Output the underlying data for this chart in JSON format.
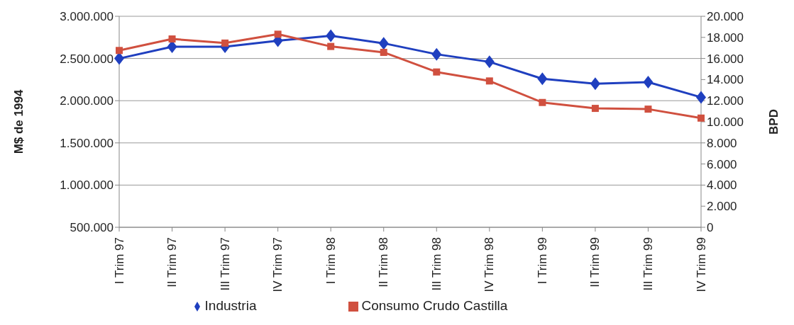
{
  "chart_data": {
    "type": "line",
    "ylabel": "M$ de 1994",
    "y2label": "BPD",
    "categories": [
      "I Trim 97",
      "II Trim 97",
      "III Trim 97",
      "IV Trim 97",
      "I Trim 98",
      "II Trim 98",
      "III Trim 98",
      "IV Trim 98",
      "I Trim 99",
      "II Trim 99",
      "III Trim 99",
      "IV Trim 99"
    ],
    "series": [
      {
        "name": "Industria",
        "color": "#1f3fbf",
        "marker": "diamond",
        "values": [
          2500000,
          2640000,
          2640000,
          2710000,
          2770000,
          2680000,
          2550000,
          2460000,
          2260000,
          2200000,
          2220000,
          2040000
        ]
      },
      {
        "name": "Consumo Crudo Castilla",
        "color": "#d0503f",
        "marker": "square",
        "axis": "y2",
        "values": [
          16760,
          17850,
          17460,
          18300,
          17140,
          16580,
          14720,
          13870,
          11830,
          11270,
          11200,
          10350
        ]
      }
    ],
    "ylim": [
      500000,
      3000000
    ],
    "yticks": [
      {
        "value": 500000,
        "label": "500.000"
      },
      {
        "value": 1000000,
        "label": "1.000.000"
      },
      {
        "value": 1500000,
        "label": "1.500.000"
      },
      {
        "value": 2000000,
        "label": "2.000.000"
      },
      {
        "value": 2500000,
        "label": "2.500.000"
      },
      {
        "value": 3000000,
        "label": "3.000.000"
      }
    ],
    "y2lim": [
      0,
      20000
    ],
    "y2ticks": [
      0,
      {
        "value": 2000,
        "label": "2.000"
      },
      {
        "value": 4000,
        "label": "4.000"
      },
      {
        "value": 6000,
        "label": "6.000"
      },
      {
        "value": 8000,
        "label": "8.000"
      },
      {
        "value": 10000,
        "label": "10.000"
      },
      {
        "value": 12000,
        "label": "12.000"
      },
      {
        "value": 14000,
        "label": "14.000"
      },
      {
        "value": 16000,
        "label": "16.000"
      },
      {
        "value": 18000,
        "label": "18.000"
      },
      {
        "value": 20000,
        "label": "20.000"
      }
    ],
    "grid": "y",
    "legend": "bottom"
  }
}
